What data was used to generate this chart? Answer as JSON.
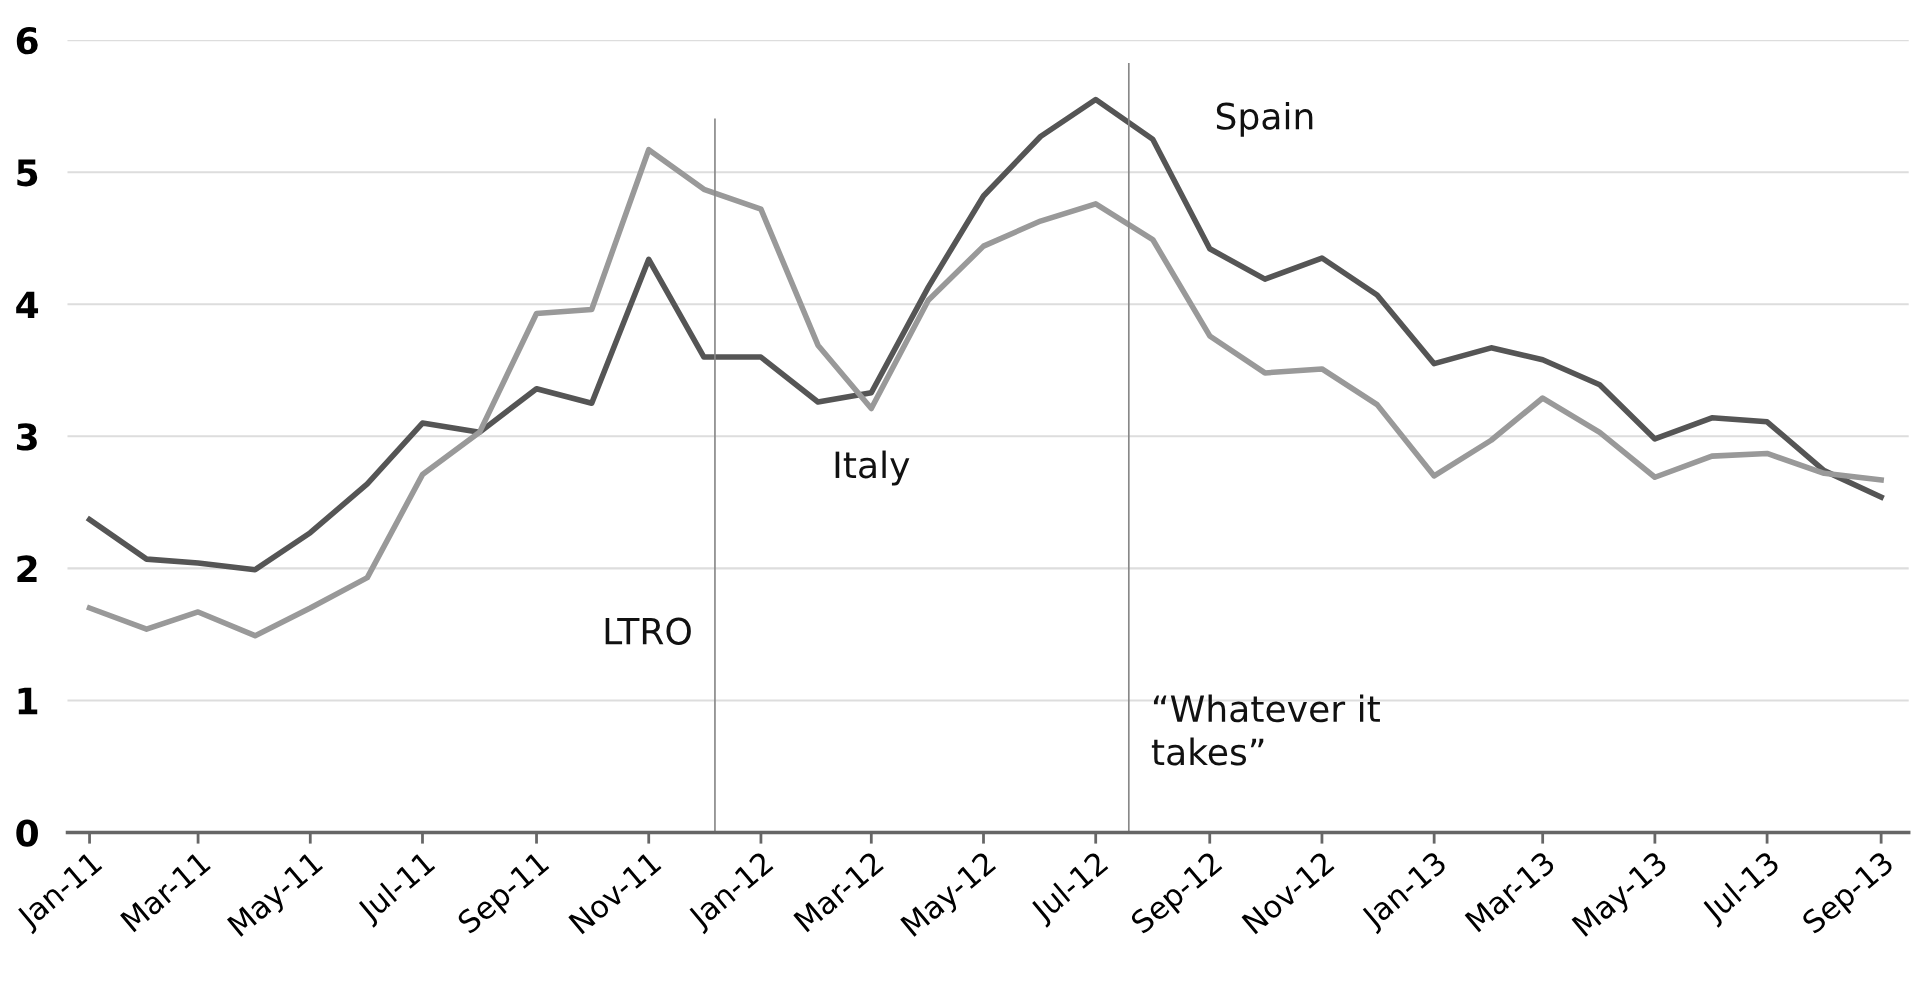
{
  "chart_data": {
    "type": "line",
    "x": [
      "2011-01",
      "2011-02",
      "2011-03",
      "2011-04",
      "2011-05",
      "2011-06",
      "2011-07",
      "2011-08",
      "2011-09",
      "2011-10",
      "2011-11",
      "2011-12",
      "2012-01",
      "2012-02",
      "2012-03",
      "2012-04",
      "2012-05",
      "2012-06",
      "2012-07",
      "2012-08",
      "2012-09",
      "2012-10",
      "2012-11",
      "2012-12",
      "2013-01",
      "2013-02",
      "2013-03",
      "2013-04",
      "2013-05",
      "2013-06",
      "2013-07",
      "2013-08",
      "2013-09"
    ],
    "series": [
      {
        "name": "Spain",
        "color": "#555555",
        "values": [
          2.37,
          2.07,
          2.04,
          1.99,
          2.27,
          2.64,
          3.1,
          3.03,
          3.36,
          3.25,
          4.34,
          3.6,
          3.6,
          3.26,
          3.33,
          4.13,
          4.82,
          5.27,
          5.55,
          5.25,
          4.42,
          4.19,
          4.35,
          4.07,
          3.55,
          3.67,
          3.58,
          3.39,
          2.98,
          3.14,
          3.11,
          2.74,
          2.54
        ]
      },
      {
        "name": "Italy",
        "color": "#999999",
        "values": [
          1.7,
          1.54,
          1.67,
          1.49,
          1.7,
          1.93,
          2.71,
          3.03,
          3.93,
          3.96,
          5.17,
          4.87,
          4.72,
          3.69,
          3.21,
          4.03,
          4.44,
          4.63,
          4.76,
          4.49,
          3.76,
          3.48,
          3.51,
          3.24,
          2.7,
          2.97,
          3.29,
          3.03,
          2.69,
          2.85,
          2.87,
          2.72,
          2.67
        ]
      }
    ],
    "ylim": [
      0,
      6
    ],
    "yticks": [
      0,
      1,
      2,
      3,
      4,
      5,
      6
    ],
    "xlim": [
      "2010-12-20",
      "2013-09-16"
    ],
    "xticks": [
      {
        "value": "2011-01",
        "label": "Jan-11"
      },
      {
        "value": "2011-03",
        "label": "Mar-11"
      },
      {
        "value": "2011-05",
        "label": "May-11"
      },
      {
        "value": "2011-07",
        "label": "Jul-11"
      },
      {
        "value": "2011-09",
        "label": "Sep-11"
      },
      {
        "value": "2011-11",
        "label": "Nov-11"
      },
      {
        "value": "2012-01",
        "label": "Jan-12"
      },
      {
        "value": "2012-03",
        "label": "Mar-12"
      },
      {
        "value": "2012-05",
        "label": "May-12"
      },
      {
        "value": "2012-07",
        "label": "Jul-12"
      },
      {
        "value": "2012-09",
        "label": "Sep-12"
      },
      {
        "value": "2012-11",
        "label": "Nov-12"
      },
      {
        "value": "2013-01",
        "label": "Jan-13"
      },
      {
        "value": "2013-03",
        "label": "Mar-13"
      },
      {
        "value": "2013-05",
        "label": "May-13"
      },
      {
        "value": "2013-07",
        "label": "Jul-13"
      },
      {
        "value": "2013-09",
        "label": "Sep-13"
      }
    ],
    "ref_lines": [
      {
        "axis": "x",
        "value": "2011-12-07",
        "label": "LTRO",
        "color": "#888888"
      },
      {
        "axis": "x",
        "value": "2012-07-19",
        "label": "“Whatever it\ntakes”",
        "color": "#888888"
      }
    ],
    "grid": "y",
    "legend": false,
    "marker": "none",
    "line_style": "solid"
  }
}
